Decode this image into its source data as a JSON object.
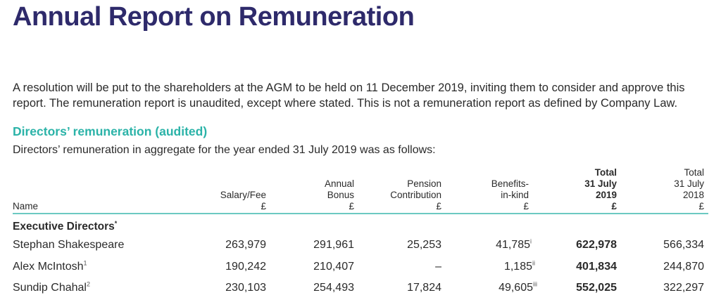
{
  "title": "Annual Report on Remuneration",
  "intro": "A resolution will be put to the shareholders at the AGM to be held on 11 December 2019, inviting them to consider and approve this report. The remuneration report is unaudited, except where stated. This is not a remuneration report as defined by Company Law.",
  "section": {
    "heading": "Directors’ remuneration (audited)",
    "subheading": "Directors’ remuneration in aggregate for the year ended 31 July 2019 was as follows:"
  },
  "table": {
    "headers": {
      "name": "Name",
      "salary": [
        "Salary/Fee",
        "£"
      ],
      "bonus": [
        "Annual",
        "Bonus",
        "£"
      ],
      "pension": [
        "Pension",
        "Contribution",
        "£"
      ],
      "benefits": [
        "Benefits-",
        "in-kind",
        "£"
      ],
      "total2019": [
        "Total",
        "31 July",
        "2019",
        "£"
      ],
      "total2018": [
        "Total",
        "31 July",
        "2018",
        "£"
      ]
    },
    "group": {
      "label": "Executive Directors",
      "marker": "*"
    },
    "rows": [
      {
        "name": "Stephan Shakespeare",
        "name_note": "",
        "salary": "263,979",
        "bonus": "291,961",
        "pension": "25,253",
        "benefits": "41,785",
        "benefits_note": "i",
        "total2019": "622,978",
        "total2018": "566,334"
      },
      {
        "name": "Alex McIntosh",
        "name_note": "1",
        "salary": "190,242",
        "bonus": "210,407",
        "pension": "–",
        "benefits": "1,185",
        "benefits_note": "ii",
        "total2019": "401,834",
        "total2018": "244,870"
      },
      {
        "name": "Sundip Chahal",
        "name_note": "2",
        "salary": "230,103",
        "bonus": "254,493",
        "pension": "17,824",
        "benefits": "49,605",
        "benefits_note": "iii",
        "total2019": "552,025",
        "total2018": "322,297"
      }
    ]
  }
}
